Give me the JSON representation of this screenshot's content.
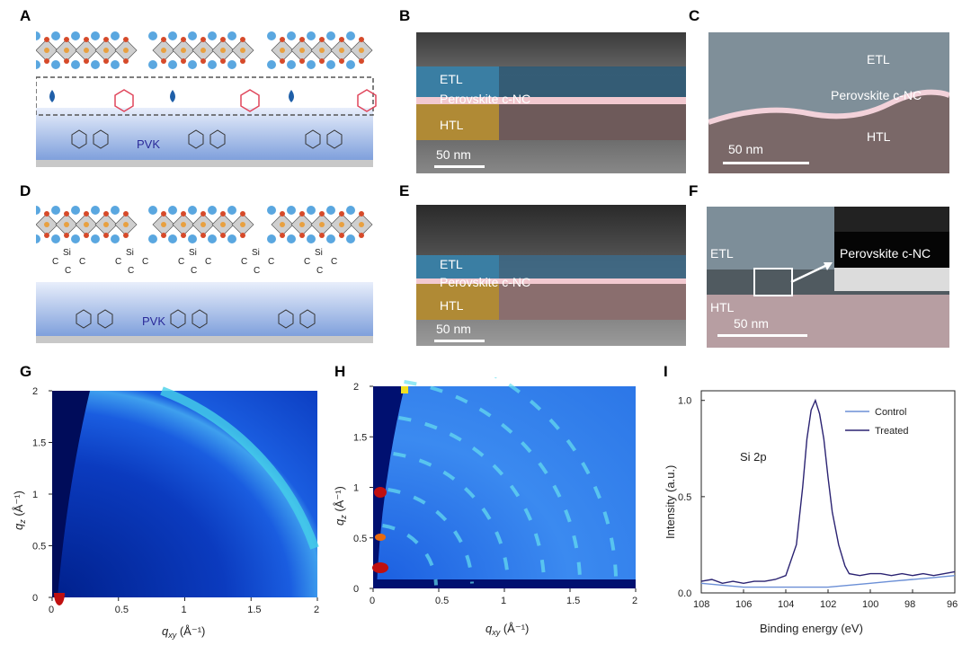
{
  "panel_labels": {
    "A": "A",
    "B": "B",
    "C": "C",
    "D": "D",
    "E": "E",
    "F": "F",
    "G": "G",
    "H": "H",
    "I": "I"
  },
  "schematic_A": {
    "layer_label": "PVK"
  },
  "schematic_D": {
    "layer_label": "PVK",
    "atom_si": "Si",
    "atom_c": "C"
  },
  "tem_B": {
    "etl": "ETL",
    "nc": "Perovskite c-NC",
    "htl": "HTL",
    "scale": "50 nm"
  },
  "tem_C": {
    "etl": "ETL",
    "nc": "Perovskite c-NC",
    "htl": "HTL",
    "scale": "50 nm"
  },
  "tem_E": {
    "etl": "ETL",
    "nc": "Perovskite c-NC",
    "htl": "HTL",
    "scale": "50 nm"
  },
  "tem_F": {
    "etl": "ETL",
    "nc": "Perovskite c-NC",
    "htl": "HTL",
    "scale": "50 nm"
  },
  "giwaxs_G": {
    "xlabel": "q",
    "xsub": "xy",
    "xunit": " (Å⁻¹)",
    "ylabel": "q",
    "ysub": "z",
    "yunit": " (Å⁻¹)",
    "xticks": [
      "0",
      "0.5",
      "1",
      "1.5",
      "2"
    ],
    "yticks": [
      "0",
      "0.5",
      "1",
      "1.5",
      "2"
    ]
  },
  "giwaxs_H": {
    "xlabel": "q",
    "xsub": "xy",
    "xunit": " (Å⁻¹)",
    "ylabel": "q",
    "ysub": "z",
    "yunit": " (Å⁻¹)",
    "xticks": [
      "0",
      "0.5",
      "1",
      "1.5",
      "2"
    ],
    "yticks": [
      "0",
      "0.5",
      "1",
      "1.5",
      "2"
    ]
  },
  "chart_data": {
    "type": "line",
    "title": "",
    "annotation": "Si 2p",
    "xlabel": "Binding energy (eV)",
    "ylabel": "Intensity (a.u.)",
    "xlim": [
      108,
      96
    ],
    "ylim": [
      0,
      1.05
    ],
    "xticks": [
      "108",
      "106",
      "104",
      "102",
      "100",
      "98",
      "96"
    ],
    "yticks": [
      "0.0",
      "0.5",
      "1.0"
    ],
    "legend_position": "top-right",
    "colors": {
      "Control": "#6b8fd6",
      "Treated": "#2b2372"
    },
    "series": [
      {
        "name": "Control",
        "x": [
          108,
          107,
          106,
          105,
          104,
          103,
          102,
          101,
          100,
          99,
          98,
          97,
          96
        ],
        "values": [
          0.05,
          0.04,
          0.03,
          0.03,
          0.03,
          0.03,
          0.03,
          0.04,
          0.05,
          0.06,
          0.07,
          0.08,
          0.09
        ]
      },
      {
        "name": "Treated",
        "x": [
          108,
          107.5,
          107,
          106.5,
          106,
          105.5,
          105,
          104.5,
          104,
          103.5,
          103.2,
          103,
          102.8,
          102.6,
          102.4,
          102.2,
          102,
          101.8,
          101.5,
          101.2,
          101,
          100.5,
          100,
          99.5,
          99,
          98.5,
          98,
          97.5,
          97,
          96.5,
          96
        ],
        "values": [
          0.06,
          0.07,
          0.05,
          0.06,
          0.05,
          0.06,
          0.06,
          0.07,
          0.09,
          0.25,
          0.55,
          0.8,
          0.95,
          1.0,
          0.93,
          0.8,
          0.6,
          0.42,
          0.25,
          0.14,
          0.1,
          0.09,
          0.1,
          0.1,
          0.09,
          0.1,
          0.09,
          0.1,
          0.09,
          0.1,
          0.11
        ]
      }
    ]
  }
}
